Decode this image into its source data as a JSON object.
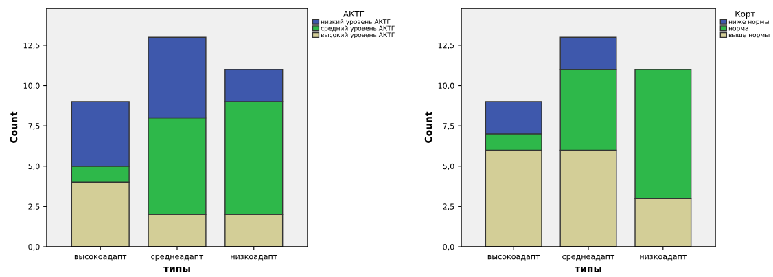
{
  "chart_data": [
    {
      "type": "bar",
      "stacked": true,
      "xlabel": "типы",
      "ylabel": "Count",
      "legend_title": "АКТГ",
      "legend": "top right",
      "grid": false,
      "categories": [
        "высокоадапт",
        "среднеадапт",
        "низкоадапт"
      ],
      "ylim": [
        0,
        14.8
      ],
      "yticks": [
        {
          "value": 0,
          "label": "0,0"
        },
        {
          "value": 2.5,
          "label": "2,5"
        },
        {
          "value": 5,
          "label": "5,0"
        },
        {
          "value": 7.5,
          "label": "7,5"
        },
        {
          "value": 10,
          "label": "10,0"
        },
        {
          "value": 12.5,
          "label": "12,5"
        }
      ],
      "series": [
        {
          "name": "высокий уровень АКТГ",
          "color": "#d3ce97",
          "values": [
            4,
            2,
            2
          ]
        },
        {
          "name": "средний уровень АКТГ",
          "color": "#2eb84a",
          "values": [
            1,
            6,
            7
          ]
        },
        {
          "name": "низкий уровень АКТГ",
          "color": "#3e58ac",
          "values": [
            4,
            5,
            2
          ]
        }
      ]
    },
    {
      "type": "bar",
      "stacked": true,
      "xlabel": "типы",
      "ylabel": "Count",
      "legend_title": "Корт",
      "legend": "top right",
      "grid": false,
      "categories": [
        "высокоадапт",
        "среднеадапт",
        "низкоадапт"
      ],
      "ylim": [
        0,
        14.8
      ],
      "yticks": [
        {
          "value": 0,
          "label": "0,0"
        },
        {
          "value": 2.5,
          "label": "2,5"
        },
        {
          "value": 5,
          "label": "5,0"
        },
        {
          "value": 7.5,
          "label": "7,5"
        },
        {
          "value": 10,
          "label": "10,0"
        },
        {
          "value": 12.5,
          "label": "12,5"
        }
      ],
      "series": [
        {
          "name": "выше нормы",
          "color": "#d3ce97",
          "values": [
            6,
            6,
            3
          ]
        },
        {
          "name": "норма",
          "color": "#2eb84a",
          "values": [
            1,
            5,
            8
          ]
        },
        {
          "name": "ниже нормы",
          "color": "#3e58ac",
          "values": [
            2,
            2,
            0
          ]
        }
      ]
    }
  ]
}
